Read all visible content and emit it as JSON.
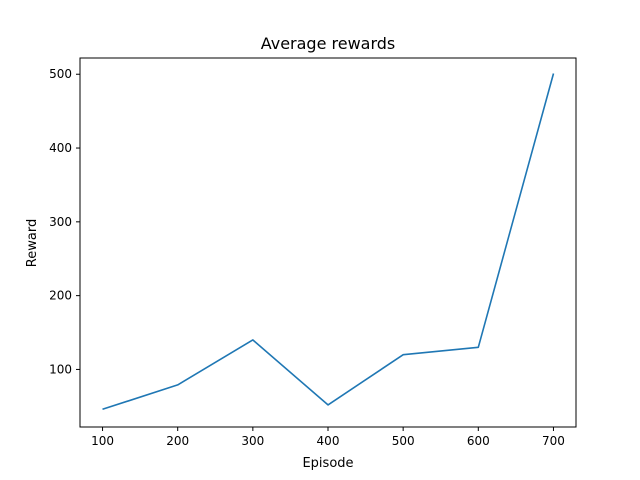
{
  "chart_data": {
    "type": "line",
    "title": "Average rewards",
    "xlabel": "Episode",
    "ylabel": "Reward",
    "x_ticks": [
      100,
      200,
      300,
      400,
      500,
      600,
      700
    ],
    "y_ticks": [
      100,
      200,
      300,
      400,
      500
    ],
    "xlim": [
      70,
      730
    ],
    "ylim": [
      22,
      522
    ],
    "grid": false,
    "series": [
      {
        "color": "#1f77b4",
        "x": [
          100,
          200,
          300,
          400,
          500,
          600,
          700
        ],
        "y": [
          46,
          79,
          140,
          52,
          120,
          130,
          501
        ]
      }
    ]
  }
}
